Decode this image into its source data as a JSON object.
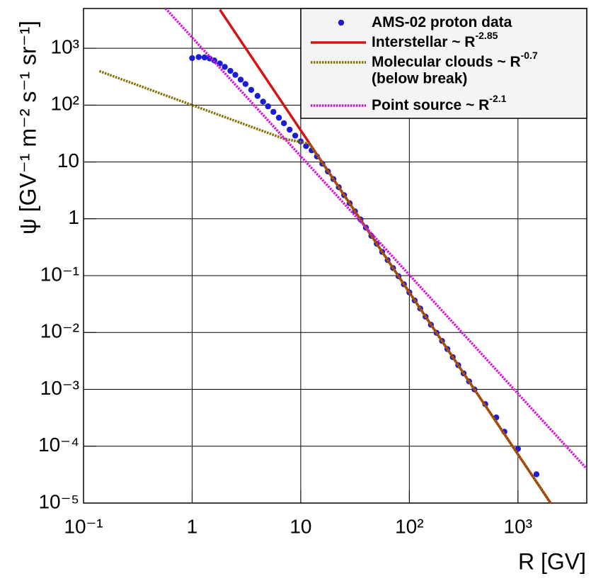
{
  "chart_data": {
    "type": "line",
    "x_label": "R [GV]",
    "y_label": "ψ [GV⁻¹ m⁻² s⁻¹ sr⁻¹]",
    "log_x": true,
    "log_y": true,
    "grid": true,
    "legend": "upper right",
    "xlim": [
      0.1,
      4300
    ],
    "ylim": [
      1e-05,
      5000
    ],
    "xticks": [
      {
        "value": 0.1,
        "label": "10⁻¹"
      },
      1,
      10,
      {
        "value": 100,
        "label": "10²"
      },
      {
        "value": 1000,
        "label": "10³"
      }
    ],
    "yticks": [
      {
        "value": 1e-05,
        "label": "10⁻⁵"
      },
      {
        "value": 0.0001,
        "label": "10⁻⁴"
      },
      {
        "value": 0.001,
        "label": "10⁻³"
      },
      {
        "value": 0.01,
        "label": "10⁻²"
      },
      {
        "value": 0.1,
        "label": "10⁻¹"
      },
      1,
      10,
      {
        "value": 100,
        "label": "10²"
      },
      {
        "value": 1000,
        "label": "10³"
      }
    ],
    "series": [
      {
        "name": "AMS-02 proton data",
        "color": "#1c1cd4",
        "style": "markers",
        "x": [
          1.0,
          1.15,
          1.3,
          1.45,
          1.6,
          1.8,
          2.0,
          2.25,
          2.5,
          2.8,
          3.1,
          3.5,
          4.0,
          4.5,
          5.0,
          5.6,
          6.3,
          7.0,
          7.9,
          8.9,
          10,
          11.2,
          12.6,
          14.1,
          15.8,
          17.8,
          20,
          22.4,
          25.1,
          28.2,
          31.6,
          35.5,
          39.8,
          44.7,
          50.1,
          56.2,
          63.1,
          70.8,
          79.4,
          89.1,
          100,
          112,
          126,
          141,
          158,
          178,
          200,
          224,
          251,
          282,
          316,
          355,
          398,
          500,
          631,
          750,
          1000,
          1480
        ],
        "values": [
          670,
          700,
          690,
          660,
          610,
          540,
          470,
          400,
          340,
          280,
          235,
          185,
          145,
          115,
          95,
          76,
          60,
          48,
          37,
          29,
          23,
          19,
          16,
          12.5,
          9.3,
          6.8,
          5.0,
          3.6,
          2.6,
          1.88,
          1.35,
          0.975,
          0.7,
          0.5,
          0.364,
          0.262,
          0.188,
          0.136,
          0.0978,
          0.0705,
          0.0508,
          0.0366,
          0.0264,
          0.019,
          0.0137,
          0.00987,
          0.00711,
          0.00512,
          0.00369,
          0.00266,
          0.00191,
          0.00138,
          0.000995,
          0.00055,
          0.00032,
          0.00018,
          9e-05,
          3.2e-05
        ]
      },
      {
        "name": "Interstellar ~ R",
        "exponent": "-2.85",
        "color": "#d41414",
        "style": "solid",
        "x": [
          1.8,
          2000
        ],
        "values": [
          4770,
          1e-05
        ]
      },
      {
        "name": "Molecular clouds ~ R",
        "exponent": "-0.7",
        "name_line2": "(below break)",
        "color": "#857000",
        "style": "dotted",
        "x": [
          0.14,
          1,
          7,
          12,
          2000
        ],
        "values": [
          396,
          100,
          25.6,
          21,
          1e-05
        ]
      },
      {
        "name": "Point source ~ R",
        "exponent": "-2.1",
        "color": "#dd11dd",
        "style": "dotted",
        "x": [
          0.57,
          4300
        ],
        "values": [
          5000,
          4e-05
        ]
      }
    ]
  }
}
